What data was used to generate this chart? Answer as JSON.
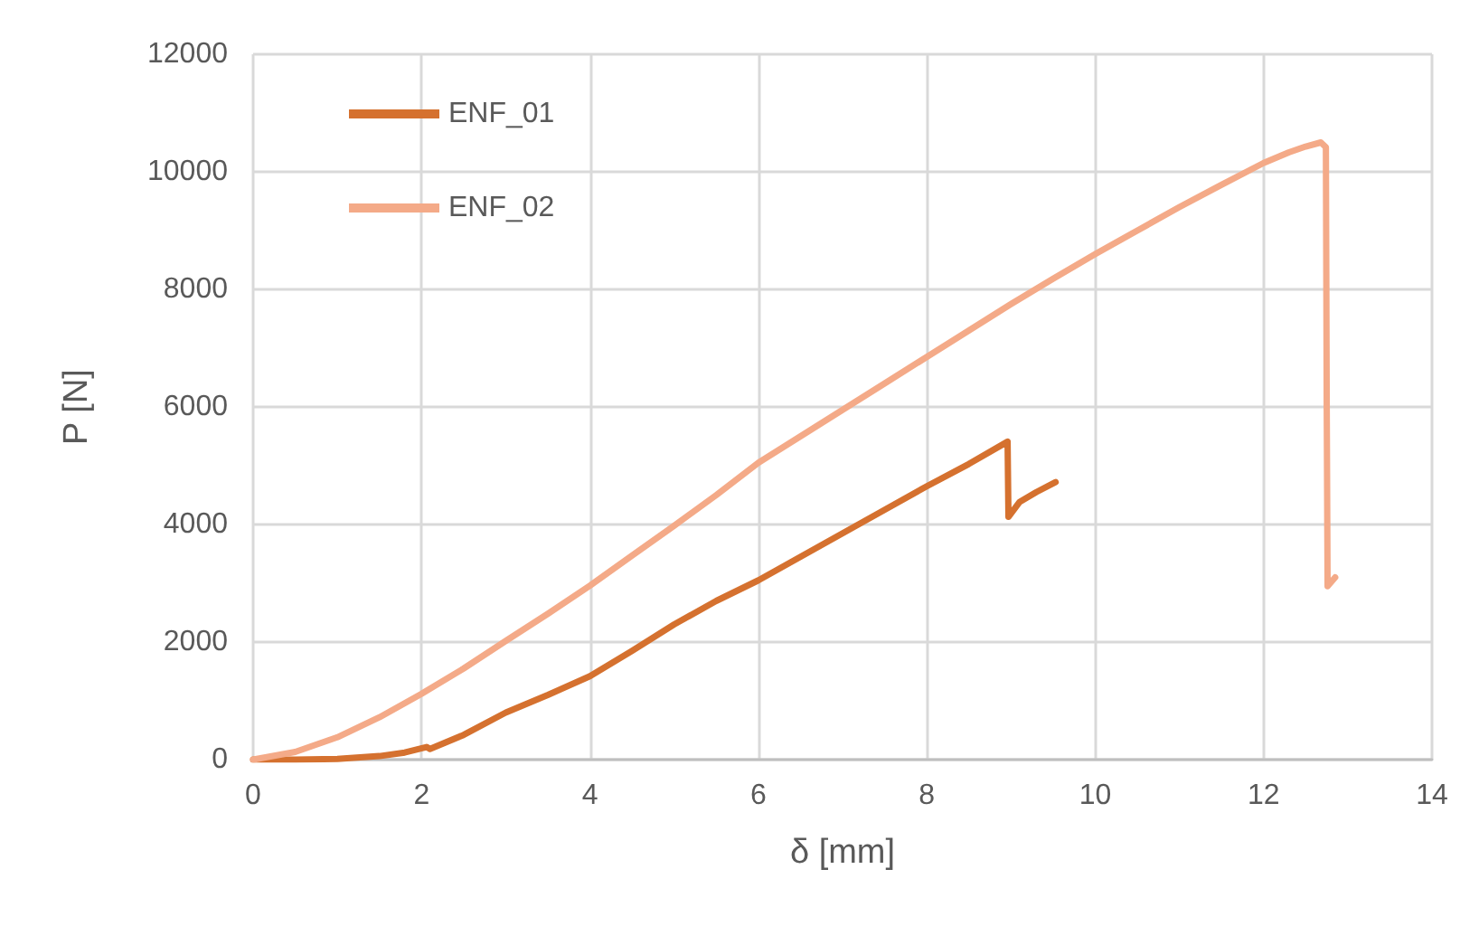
{
  "chart_data": {
    "type": "line",
    "xlabel": "δ [mm]",
    "ylabel": "P [N]",
    "xlim": [
      0,
      14
    ],
    "xticks": [
      0,
      2,
      4,
      6,
      8,
      10,
      12,
      14
    ],
    "ylim": [
      0,
      12000
    ],
    "yticks": [
      0,
      2000,
      4000,
      6000,
      8000,
      10000,
      12000
    ],
    "grid": true,
    "legend": "top left",
    "marker": "none",
    "line_style": "solid",
    "series": [
      {
        "name": "ENF_01",
        "color": "#d5712f",
        "x": [
          0,
          0.5,
          1,
          1.5,
          1.8,
          2.06,
          2.1,
          2.5,
          3,
          3.5,
          4,
          4.5,
          5,
          5.5,
          6,
          6.5,
          7,
          7.5,
          8,
          8.5,
          8.96,
          8.97,
          9.1,
          9.3,
          9.53
        ],
        "values": [
          0,
          0,
          10,
          60,
          120,
          215,
          180,
          420,
          800,
          1100,
          1420,
          1850,
          2300,
          2700,
          3050,
          3450,
          3850,
          4250,
          4650,
          5030,
          5410,
          4130,
          4380,
          4550,
          4720
        ]
      },
      {
        "name": "ENF_02",
        "color": "#f4aa88",
        "x": [
          0,
          0.5,
          1,
          1.5,
          2,
          2.5,
          3,
          3.5,
          4,
          4.5,
          5,
          5.5,
          6,
          6.5,
          7,
          7.5,
          8,
          8.5,
          9,
          9.5,
          10,
          10.5,
          11,
          11.5,
          12,
          12.3,
          12.5,
          12.68,
          12.74,
          12.75,
          12.76,
          12.85
        ],
        "values": [
          0,
          130,
          380,
          720,
          1120,
          1550,
          2020,
          2480,
          2960,
          3470,
          3980,
          4500,
          5050,
          5500,
          5950,
          6400,
          6850,
          7300,
          7750,
          8180,
          8600,
          9000,
          9400,
          9780,
          10150,
          10330,
          10430,
          10500,
          10420,
          6000,
          2950,
          3100
        ]
      }
    ]
  }
}
